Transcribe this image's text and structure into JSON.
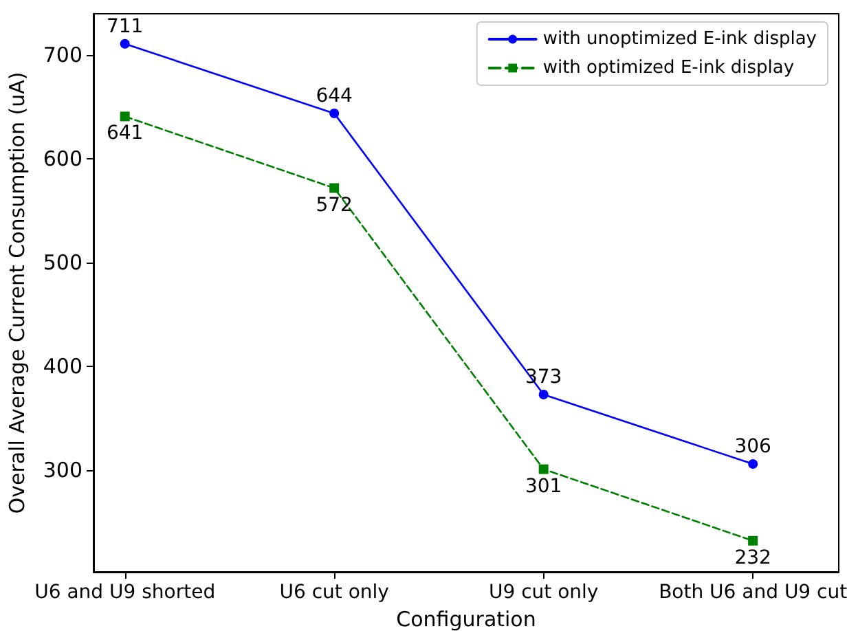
{
  "chart_data": {
    "type": "line",
    "xlabel": "Configuration",
    "ylabel": "Overall Average Current Consumption (uA)",
    "categories": [
      "U6 and U9 shorted",
      "U6 cut only",
      "U9 cut only",
      "Both U6 and U9 cut"
    ],
    "series": [
      {
        "name": "with unoptimized E-ink display",
        "color": "#0000ff",
        "values": [
          711,
          644,
          373,
          306
        ],
        "marker": "circle",
        "line_style": "solid"
      },
      {
        "name": "with optimized E-ink display",
        "color": "#008000",
        "values": [
          641,
          572,
          301,
          232
        ],
        "marker": "square",
        "line_style": "dashed"
      }
    ],
    "ylim": [
      202,
      740
    ],
    "yticks": [
      300,
      400,
      500,
      600,
      700
    ],
    "data_labels": true,
    "grid": false,
    "legend": "top right"
  }
}
